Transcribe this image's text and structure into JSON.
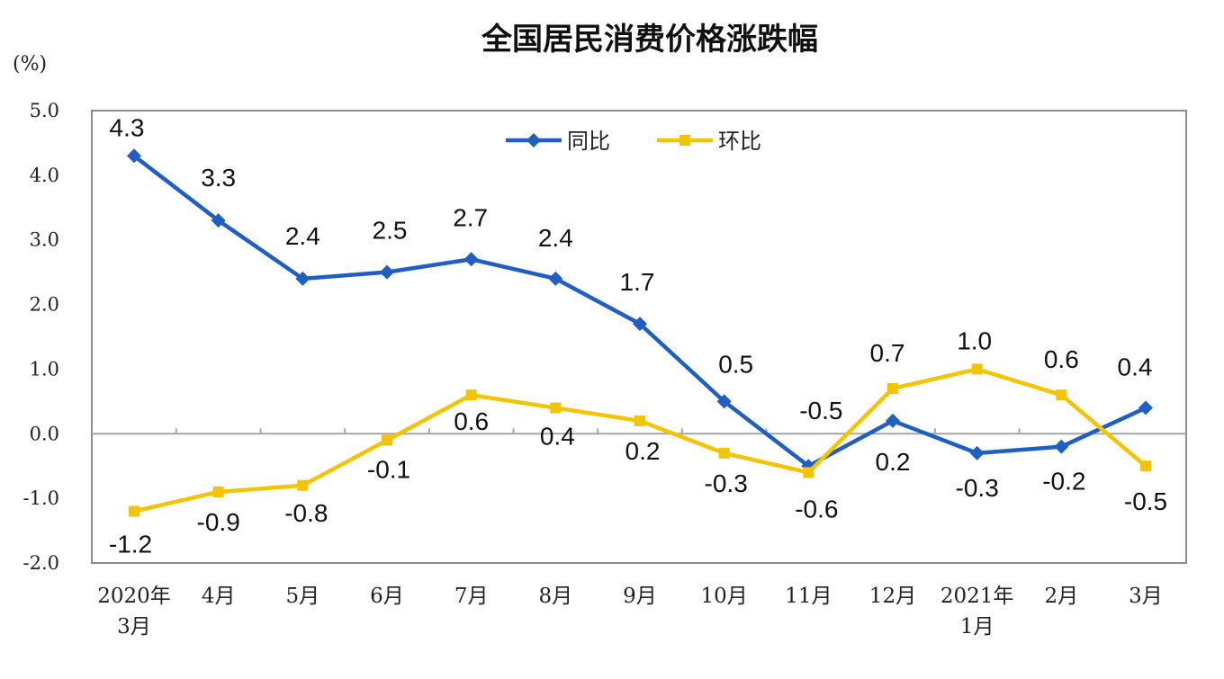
{
  "chart_data": {
    "type": "line",
    "title": "全国居民消费价格涨跌幅",
    "ylabel": "(%)",
    "ylim": [
      -2.0,
      5.0
    ],
    "yticks": [
      "5.0",
      "4.0",
      "3.0",
      "2.0",
      "1.0",
      "0.0",
      "-1.0",
      "-2.0"
    ],
    "categories": [
      [
        "2020年",
        "3月"
      ],
      [
        "4月"
      ],
      [
        "5月"
      ],
      [
        "6月"
      ],
      [
        "7月"
      ],
      [
        "8月"
      ],
      [
        "9月"
      ],
      [
        "10月"
      ],
      [
        "11月"
      ],
      [
        "12月"
      ],
      [
        "2021年",
        "1月"
      ],
      [
        "2月"
      ],
      [
        "3月"
      ]
    ],
    "series": [
      {
        "name": "同比",
        "color": "#1f5fc4",
        "marker": "diamond",
        "values": [
          4.3,
          3.3,
          2.4,
          2.5,
          2.7,
          2.4,
          1.7,
          0.5,
          -0.5,
          0.2,
          -0.3,
          -0.2,
          0.4
        ],
        "labels": [
          "4.3",
          "3.3",
          "2.4",
          "2.5",
          "2.7",
          "2.4",
          "1.7",
          "0.5",
          "-0.5",
          "0.2",
          "-0.3",
          "-0.2",
          "0.4"
        ]
      },
      {
        "name": "环比",
        "color": "#f5c400",
        "marker": "square",
        "values": [
          -1.2,
          -0.9,
          -0.8,
          -0.1,
          0.6,
          0.4,
          0.2,
          -0.3,
          -0.6,
          0.7,
          1.0,
          0.6,
          -0.5
        ],
        "labels": [
          "-1.2",
          "-0.9",
          "-0.8",
          "-0.1",
          "0.6",
          "0.4",
          "0.2",
          "-0.3",
          "-0.6",
          "0.7",
          "1.0",
          "0.6",
          "-0.5"
        ]
      }
    ],
    "legend": "top-center",
    "grid": false
  }
}
